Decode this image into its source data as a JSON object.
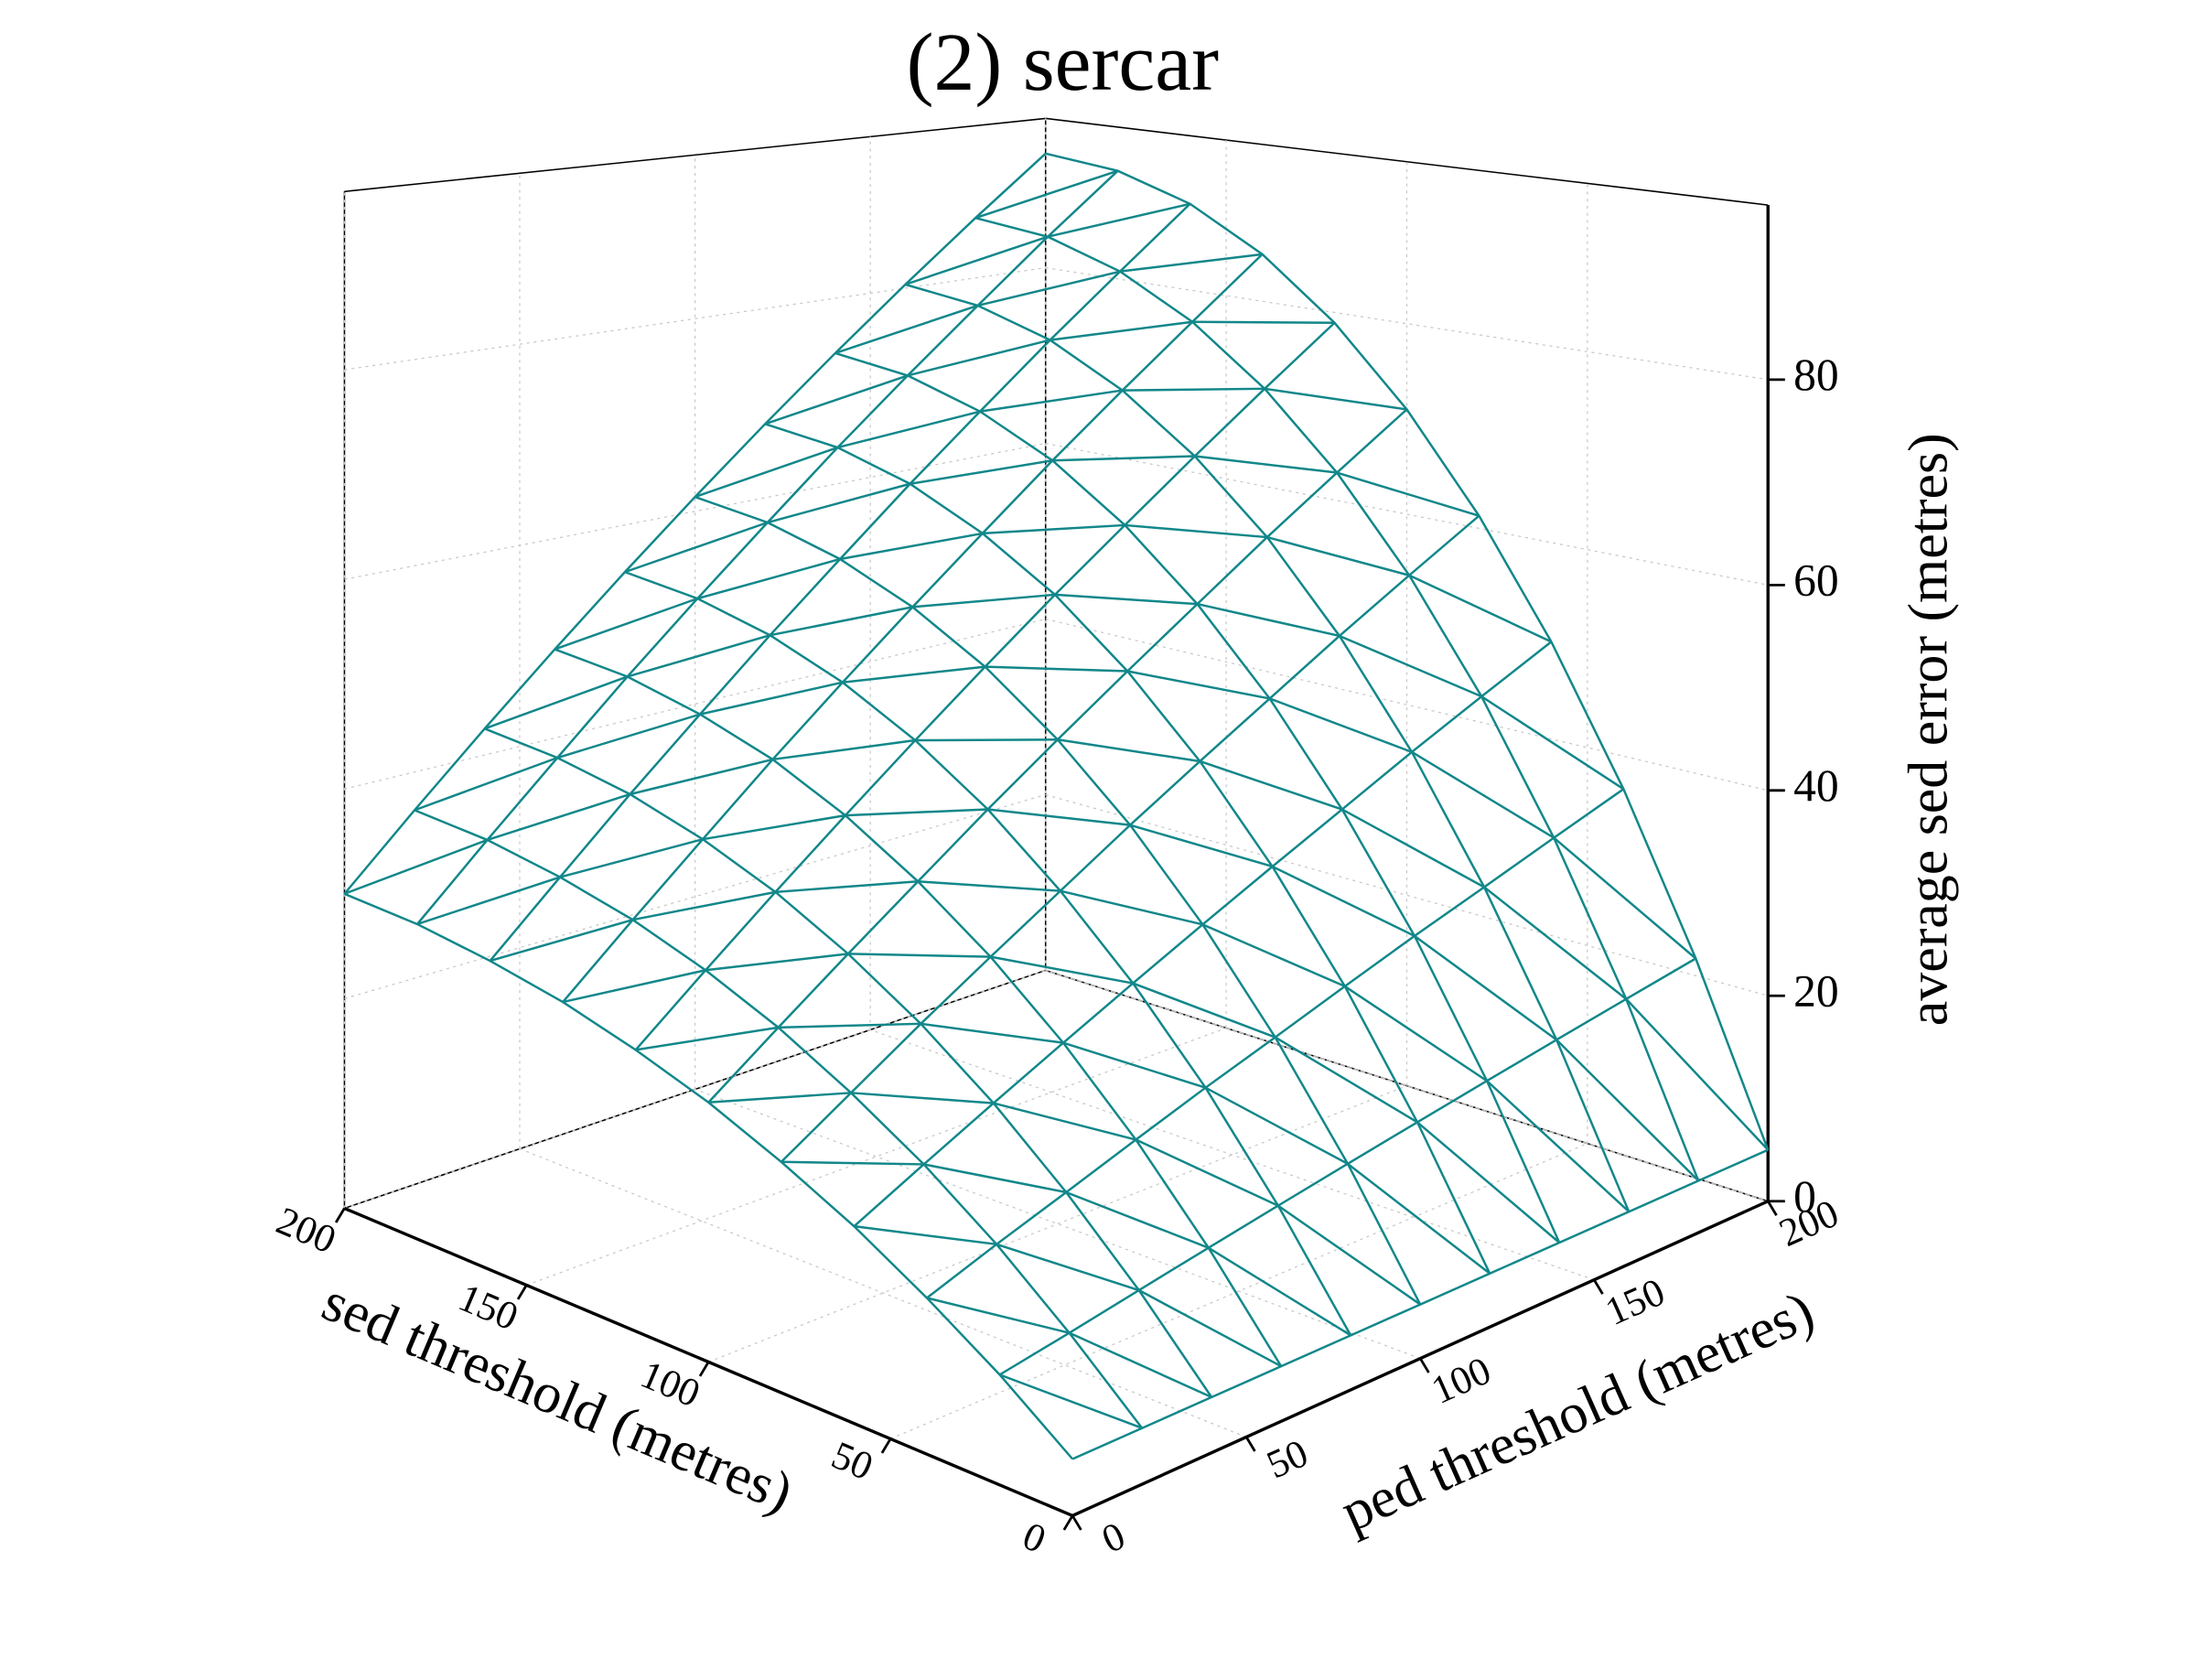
{
  "chart_data": {
    "type": "surface",
    "title": "(2) sercar",
    "xlabel": "sed threshold (metres)",
    "ylabel": "ped threshold (metres)",
    "zlabel": "average sed error (metres)",
    "color": "#12878a",
    "grid": true,
    "x": [
      0,
      20,
      40,
      60,
      80,
      100,
      120,
      140,
      160,
      180,
      200
    ],
    "y": [
      0,
      20,
      40,
      60,
      80,
      100,
      120,
      140,
      160,
      180,
      200
    ],
    "z": [
      [
        5,
        5,
        5,
        5,
        5,
        5,
        5,
        5,
        5,
        5,
        5
      ],
      [
        9.8,
        10.9,
        12.1,
        13.3,
        14.5,
        15.7,
        16.9,
        18.1,
        19.3,
        20.5,
        21.7
      ],
      [
        14.0,
        16.3,
        18.5,
        20.8,
        23.1,
        25.3,
        27.6,
        29.9,
        32.1,
        34.4,
        36.7
      ],
      [
        17.8,
        21.0,
        24.2,
        27.4,
        30.6,
        33.8,
        37.0,
        40.2,
        43.5,
        46.7,
        49.9
      ],
      [
        21.0,
        25.0,
        29.1,
        33.1,
        37.1,
        41.2,
        45.2,
        49.2,
        53.3,
        57.3,
        61.3
      ],
      [
        23.8,
        28.5,
        33.2,
        37.9,
        42.7,
        47.4,
        52.1,
        56.8,
        61.6,
        66.3,
        71.0
      ],
      [
        26.0,
        31.3,
        36.6,
        41.9,
        47.2,
        52.5,
        57.8,
        63.0,
        68.3,
        73.6,
        78.9
      ],
      [
        27.8,
        33.5,
        39.2,
        45.0,
        50.7,
        56.4,
        62.1,
        67.9,
        73.6,
        79.3,
        85.1
      ],
      [
        29.0,
        35.0,
        41.1,
        47.1,
        53.2,
        59.2,
        65.3,
        71.3,
        77.4,
        83.4,
        89.5
      ],
      [
        29.8,
        36.0,
        42.2,
        48.5,
        54.7,
        60.9,
        67.2,
        73.4,
        79.6,
        85.9,
        92.1
      ],
      [
        30,
        36.3,
        42.6,
        48.9,
        55.2,
        61.5,
        67.8,
        74.1,
        80.4,
        86.7,
        93
      ]
    ],
    "xlim": [
      0,
      200
    ],
    "ylim": [
      0,
      200
    ],
    "zlim": [
      0,
      97
    ],
    "xticks": [
      0,
      50,
      100,
      150,
      200
    ],
    "yticks": [
      0,
      50,
      100,
      150,
      200
    ],
    "zticks": [
      0,
      20,
      40,
      60,
      80
    ]
  }
}
